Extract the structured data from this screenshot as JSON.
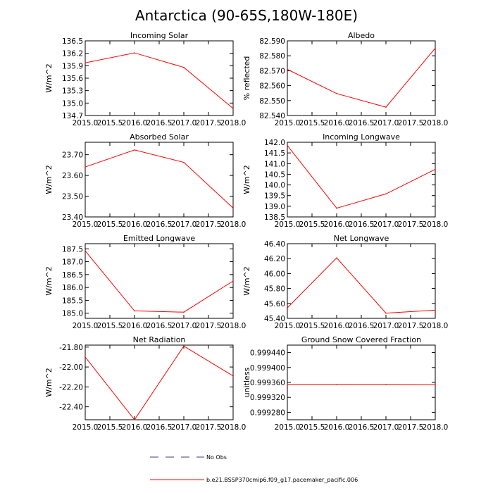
{
  "title": "Antarctica (90-65S,180W-180E)",
  "legend": {
    "entries": [
      {
        "label": "No Obs",
        "style": "dashed",
        "color": "#3b3b8f"
      },
      {
        "label": "b.e21.BSSP370cmip6.f09_g17.pacemaker_pacific.006",
        "style": "solid",
        "color": "#ff0000"
      }
    ]
  },
  "colors": {
    "series": "#ff0000",
    "axis": "#000000"
  },
  "chart_data": [
    {
      "type": "line",
      "title": "Incoming Solar",
      "ylabel": "W/m^2",
      "x": [
        2015,
        2016,
        2017,
        2018
      ],
      "y": [
        135.97,
        136.21,
        135.86,
        134.87
      ],
      "xlim": [
        2015,
        2018
      ],
      "ylim": [
        134.7,
        136.5
      ],
      "xticks": [
        "2015.0",
        "2015.5",
        "2016.0",
        "2016.5",
        "2017.0",
        "2017.5",
        "2018.0"
      ],
      "xtick_values": [
        2015,
        2015.5,
        2016,
        2016.5,
        2017,
        2017.5,
        2018
      ],
      "yticks": [
        "136.5",
        "136.2",
        "135.9",
        "135.6",
        "135.3",
        "135.0",
        "134.7"
      ],
      "ytick_values": [
        136.5,
        136.2,
        135.9,
        135.6,
        135.3,
        135.0,
        134.7
      ]
    },
    {
      "type": "line",
      "title": "Albedo",
      "ylabel": "% reflected",
      "x": [
        2015,
        2016,
        2017,
        2018
      ],
      "y": [
        82.5709,
        82.5547,
        82.5456,
        82.5851
      ],
      "xlim": [
        2015,
        2018
      ],
      "ylim": [
        82.54,
        82.59
      ],
      "xticks": [
        "2015.0",
        "2015.5",
        "2016.0",
        "2016.5",
        "2017.0",
        "2017.5",
        "2018.0"
      ],
      "xtick_values": [
        2015,
        2015.5,
        2016,
        2016.5,
        2017,
        2017.5,
        2018
      ],
      "yticks": [
        "82.590",
        "82.580",
        "82.570",
        "82.560",
        "82.550",
        "82.540"
      ],
      "ytick_values": [
        82.59,
        82.58,
        82.57,
        82.56,
        82.55,
        82.54
      ]
    },
    {
      "type": "line",
      "title": "Absorbed Solar",
      "ylabel": "W/m^2",
      "x": [
        2015,
        2016,
        2017,
        2018
      ],
      "y": [
        23.641,
        23.723,
        23.663,
        23.443
      ],
      "xlim": [
        2015,
        2018
      ],
      "ylim": [
        23.4,
        23.76
      ],
      "xticks": [
        "2015.0",
        "2015.5",
        "2016.0",
        "2016.5",
        "2017.0",
        "2017.5",
        "2018.0"
      ],
      "xtick_values": [
        2015,
        2015.5,
        2016,
        2016.5,
        2017,
        2017.5,
        2018
      ],
      "yticks": [
        "23.70",
        "23.60",
        "23.50",
        "23.40"
      ],
      "ytick_values": [
        23.7,
        23.6,
        23.5,
        23.4
      ]
    },
    {
      "type": "line",
      "title": "Incoming Longwave",
      "ylabel": "W/m^2",
      "x": [
        2015,
        2016,
        2017,
        2018
      ],
      "y": [
        141.85,
        138.91,
        139.58,
        140.73
      ],
      "xlim": [
        2015,
        2018
      ],
      "ylim": [
        138.5,
        142.0
      ],
      "xticks": [
        "2015.0",
        "2015.5",
        "2016.0",
        "2016.5",
        "2017.0",
        "2017.5",
        "2018.0"
      ],
      "xtick_values": [
        2015,
        2015.5,
        2016,
        2016.5,
        2017,
        2017.5,
        2018
      ],
      "yticks": [
        "142.0",
        "141.5",
        "141.0",
        "140.5",
        "140.0",
        "139.5",
        "139.0",
        "138.5"
      ],
      "ytick_values": [
        142.0,
        141.5,
        141.0,
        140.5,
        140.0,
        139.5,
        139.0,
        138.5
      ]
    },
    {
      "type": "line",
      "title": "Emitted Longwave",
      "ylabel": "W/m^2",
      "x": [
        2015,
        2016,
        2017,
        2018
      ],
      "y": [
        187.42,
        185.09,
        185.04,
        186.25
      ],
      "xlim": [
        2015,
        2018
      ],
      "ylim": [
        184.8,
        187.7
      ],
      "xticks": [
        "2015.0",
        "2015.5",
        "2016.0",
        "2016.5",
        "2017.0",
        "2017.5",
        "2018.0"
      ],
      "xtick_values": [
        2015,
        2015.5,
        2016,
        2016.5,
        2017,
        2017.5,
        2018
      ],
      "yticks": [
        "187.5",
        "187.0",
        "186.5",
        "186.0",
        "185.5",
        "185.0"
      ],
      "ytick_values": [
        187.5,
        187.0,
        186.5,
        186.0,
        185.5,
        185.0
      ]
    },
    {
      "type": "line",
      "title": "Net Longwave",
      "ylabel": "W/m^2",
      "x": [
        2015,
        2016,
        2017,
        2018
      ],
      "y": [
        45.54,
        46.21,
        45.47,
        45.51
      ],
      "xlim": [
        2015,
        2018
      ],
      "ylim": [
        45.4,
        46.4
      ],
      "xticks": [
        "2015.0",
        "2015.5",
        "2016.0",
        "2016.5",
        "2017.0",
        "2017.5",
        "2018.0"
      ],
      "xtick_values": [
        2015,
        2015.5,
        2016,
        2016.5,
        2017,
        2017.5,
        2018
      ],
      "yticks": [
        "46.40",
        "46.20",
        "46.00",
        "45.80",
        "45.60",
        "45.40"
      ],
      "ytick_values": [
        46.4,
        46.2,
        46.0,
        45.8,
        45.6,
        45.4
      ]
    },
    {
      "type": "line",
      "title": "Net Radiation",
      "ylabel": "W/m^2",
      "x": [
        2015,
        2016,
        2017,
        2018
      ],
      "y": [
        -21.9,
        -22.53,
        -21.79,
        -22.09
      ],
      "xlim": [
        2015,
        2018
      ],
      "ylim": [
        -22.53,
        -21.78
      ],
      "xticks": [
        "2015.0",
        "2015.5",
        "2016.0",
        "2016.5",
        "2017.0",
        "2017.5",
        "2018.0"
      ],
      "xtick_values": [
        2015,
        2015.5,
        2016,
        2016.5,
        2017,
        2017.5,
        2018
      ],
      "yticks": [
        "-21.80",
        "-22.00",
        "-22.20",
        "-22.40"
      ],
      "ytick_values": [
        -21.8,
        -22.0,
        -22.2,
        -22.4
      ]
    },
    {
      "type": "line",
      "title": "Ground Snow Covered Fraction",
      "ylabel": "unitless",
      "x": [
        2015,
        2016,
        2017,
        2018
      ],
      "y": [
        0.999355,
        0.999355,
        0.999355,
        0.999354
      ],
      "xlim": [
        2015,
        2018
      ],
      "ylim": [
        0.99926,
        0.99946
      ],
      "xticks": [
        "2015.0",
        "2015.5",
        "2016.0",
        "2016.5",
        "2017.0",
        "2017.5",
        "2018.0"
      ],
      "xtick_values": [
        2015,
        2015.5,
        2016,
        2016.5,
        2017,
        2017.5,
        2018
      ],
      "yticks": [
        "0.999440",
        "0.999400",
        "0.999360",
        "0.999320",
        "0.999280"
      ],
      "ytick_values": [
        0.99944,
        0.9994,
        0.99936,
        0.99932,
        0.99928
      ]
    }
  ]
}
